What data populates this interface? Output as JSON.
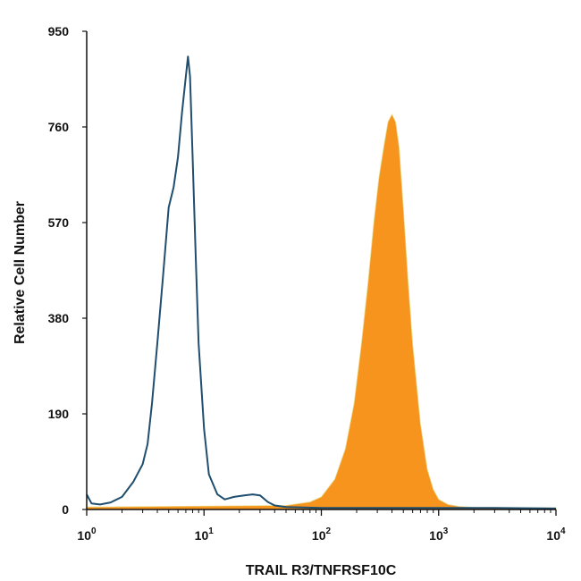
{
  "chart_data": {
    "type": "area",
    "title": "",
    "xlabel": "TRAIL R3/TNFRSF10C",
    "ylabel": "Relative Cell Number",
    "x_scale": "log",
    "xlim": [
      1,
      10000
    ],
    "ylim": [
      0,
      950
    ],
    "x_ticks": [
      {
        "value": 1,
        "base": "10",
        "exp": "0"
      },
      {
        "value": 10,
        "base": "10",
        "exp": "1"
      },
      {
        "value": 100,
        "base": "10",
        "exp": "2"
      },
      {
        "value": 1000,
        "base": "10",
        "exp": "3"
      },
      {
        "value": 10000,
        "base": "10",
        "exp": "4"
      }
    ],
    "y_ticks": [
      "0",
      "190",
      "380",
      "570",
      "760",
      "950"
    ],
    "grid": false,
    "series": [
      {
        "style": "outline",
        "color": "#1f4e6e",
        "x": [
          1,
          1.1,
          1.3,
          1.6,
          2.0,
          2.5,
          3.0,
          3.3,
          3.6,
          4.0,
          4.5,
          5.0,
          5.5,
          6.0,
          6.5,
          7.0,
          7.3,
          7.6,
          8.0,
          8.5,
          9.0,
          10,
          11,
          13,
          15,
          18,
          22,
          26,
          30,
          35,
          40,
          50,
          70,
          100,
          200,
          500,
          1000,
          3000,
          10000
        ],
        "y": [
          30,
          12,
          10,
          14,
          25,
          55,
          90,
          130,
          210,
          330,
          470,
          600,
          640,
          700,
          790,
          860,
          900,
          860,
          700,
          500,
          330,
          160,
          70,
          30,
          20,
          25,
          28,
          30,
          28,
          15,
          8,
          5,
          4,
          3,
          3,
          3,
          3,
          3,
          2
        ]
      },
      {
        "style": "filled",
        "color": "#f7941d",
        "x": [
          1,
          50,
          80,
          100,
          130,
          160,
          190,
          220,
          250,
          280,
          310,
          340,
          370,
          400,
          430,
          460,
          500,
          550,
          600,
          700,
          800,
          900,
          1000,
          1200,
          1500,
          2000,
          10000
        ],
        "y": [
          5,
          8,
          15,
          25,
          60,
          120,
          210,
          330,
          450,
          570,
          660,
          720,
          770,
          785,
          770,
          720,
          600,
          450,
          330,
          170,
          80,
          40,
          20,
          10,
          6,
          4,
          3
        ]
      }
    ]
  }
}
